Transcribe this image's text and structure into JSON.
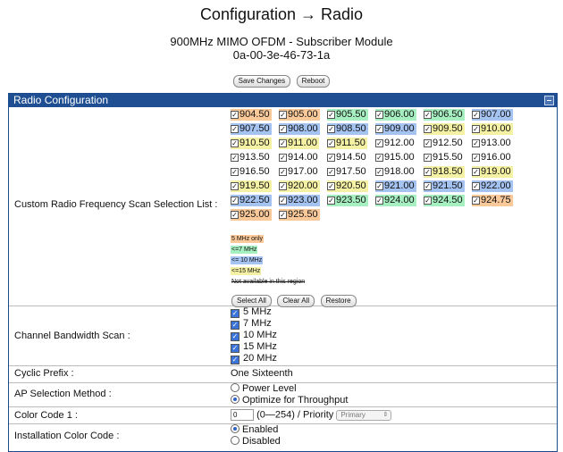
{
  "page": {
    "title": "Configuration → Radio",
    "subtitle_line1": "900MHz MIMO OFDM - Subscriber Module",
    "subtitle_line2": "0a-00-3e-46-73-1a",
    "save_label": "Save Changes",
    "reboot_label": "Reboot"
  },
  "panel": {
    "title": "Radio Configuration"
  },
  "scan_list": {
    "label": "Custom Radio Frequency Scan Selection List :",
    "frequencies": [
      {
        "value": "904.50",
        "color": "orange",
        "checked": true
      },
      {
        "value": "905.00",
        "color": "orange",
        "checked": true
      },
      {
        "value": "905.50",
        "color": "green",
        "checked": true
      },
      {
        "value": "906.00",
        "color": "green",
        "checked": true
      },
      {
        "value": "906.50",
        "color": "green",
        "checked": true
      },
      {
        "value": "907.00",
        "color": "blue",
        "checked": true
      },
      {
        "value": "907.50",
        "color": "blue",
        "checked": true
      },
      {
        "value": "908.00",
        "color": "blue",
        "checked": true
      },
      {
        "value": "908.50",
        "color": "blue",
        "checked": true
      },
      {
        "value": "909.00",
        "color": "blue",
        "checked": true
      },
      {
        "value": "909.50",
        "color": "yellow",
        "checked": true
      },
      {
        "value": "910.00",
        "color": "yellow",
        "checked": true
      },
      {
        "value": "910.50",
        "color": "yellow",
        "checked": true
      },
      {
        "value": "911.00",
        "color": "yellow",
        "checked": true
      },
      {
        "value": "911.50",
        "color": "yellow",
        "checked": true
      },
      {
        "value": "912.00",
        "color": "none",
        "checked": true
      },
      {
        "value": "912.50",
        "color": "none",
        "checked": true
      },
      {
        "value": "913.00",
        "color": "none",
        "checked": true
      },
      {
        "value": "913.50",
        "color": "none",
        "checked": true
      },
      {
        "value": "914.00",
        "color": "none",
        "checked": true
      },
      {
        "value": "914.50",
        "color": "none",
        "checked": true
      },
      {
        "value": "915.00",
        "color": "none",
        "checked": true
      },
      {
        "value": "915.50",
        "color": "none",
        "checked": true
      },
      {
        "value": "916.00",
        "color": "none",
        "checked": true
      },
      {
        "value": "916.50",
        "color": "none",
        "checked": true
      },
      {
        "value": "917.00",
        "color": "none",
        "checked": true
      },
      {
        "value": "917.50",
        "color": "none",
        "checked": true
      },
      {
        "value": "918.00",
        "color": "none",
        "checked": true
      },
      {
        "value": "918.50",
        "color": "yellow",
        "checked": true
      },
      {
        "value": "919.00",
        "color": "yellow",
        "checked": true
      },
      {
        "value": "919.50",
        "color": "yellow",
        "checked": true
      },
      {
        "value": "920.00",
        "color": "yellow",
        "checked": true
      },
      {
        "value": "920.50",
        "color": "yellow",
        "checked": true
      },
      {
        "value": "921.00",
        "color": "blue",
        "checked": true
      },
      {
        "value": "921.50",
        "color": "blue",
        "checked": true
      },
      {
        "value": "922.00",
        "color": "blue",
        "checked": true
      },
      {
        "value": "922.50",
        "color": "blue",
        "checked": true
      },
      {
        "value": "923.00",
        "color": "blue",
        "checked": true
      },
      {
        "value": "923.50",
        "color": "green",
        "checked": true
      },
      {
        "value": "924.00",
        "color": "green",
        "checked": true
      },
      {
        "value": "924.50",
        "color": "green",
        "checked": true
      },
      {
        "value": "924.75",
        "color": "orange",
        "checked": true
      },
      {
        "value": "925.00",
        "color": "orange",
        "checked": true
      },
      {
        "value": "925.50",
        "color": "orange",
        "checked": true
      }
    ],
    "legend": [
      {
        "text": "5 MHz only",
        "color": "#f9c99a",
        "strike": false
      },
      {
        "text": "<=7 MHz",
        "color": "#a6efc0",
        "strike": false
      },
      {
        "text": "<= 10 MHz",
        "color": "#a5c3f1",
        "strike": false
      },
      {
        "text": "<=15 MHz",
        "color": "#f4f0a4",
        "strike": false
      },
      {
        "text": "Not available in this region",
        "color": "",
        "strike": true
      }
    ],
    "select_all_label": "Select All",
    "clear_all_label": "Clear All",
    "restore_label": "Restore"
  },
  "bandwidth": {
    "label": "Channel Bandwidth Scan :",
    "options": [
      "5 MHz",
      "7 MHz",
      "10 MHz",
      "15 MHz",
      "20 MHz"
    ]
  },
  "cyclic": {
    "label": "Cyclic Prefix :",
    "value": "One Sixteenth"
  },
  "ap_selection": {
    "label": "AP Selection Method :",
    "options": [
      {
        "text": "Power Level",
        "selected": false
      },
      {
        "text": "Optimize for Throughput",
        "selected": true
      }
    ]
  },
  "color_code": {
    "label": "Color Code 1 :",
    "value": "0",
    "range_text": "(0—254) / Priority",
    "priority": "Primary"
  },
  "install_color": {
    "label": "Installation Color Code :",
    "options": [
      {
        "text": "Enabled",
        "selected": true
      },
      {
        "text": "Disabled",
        "selected": false
      }
    ]
  },
  "colors": {
    "header_blue": "#1f4f92",
    "orange": "#f9c99a",
    "green": "#a6efc0",
    "blue": "#a5c3f1",
    "yellow": "#f4f0a4"
  }
}
